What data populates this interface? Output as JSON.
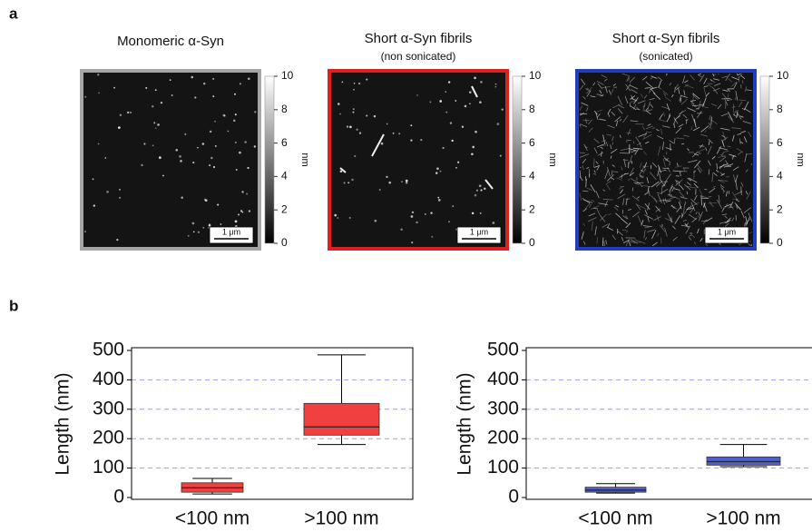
{
  "panel_labels": [
    "a",
    "b"
  ],
  "images": [
    {
      "title": "Monomeric α-Syn",
      "border_color": "#a6a6a6",
      "scale_bar": "1 μm",
      "colorbar": {
        "ylim": [
          0,
          10
        ],
        "yticks": [
          0,
          2,
          4,
          6,
          8,
          10
        ],
        "label": "nm"
      }
    },
    {
      "title": "Short α-Syn fibrils",
      "subtitle": "(non sonicated)",
      "border_color": "#e02020",
      "scale_bar": "1 μm",
      "colorbar": {
        "ylim": [
          0,
          10
        ],
        "yticks": [
          0,
          2,
          4,
          6,
          8,
          10
        ],
        "label": "nm"
      }
    },
    {
      "title": "Short α-Syn fibrils",
      "subtitle": "(sonicated)",
      "border_color": "#1f3fbf",
      "scale_bar": "1 μm",
      "colorbar": {
        "ylim": [
          0,
          10
        ],
        "yticks": [
          0,
          2,
          4,
          6,
          8,
          10
        ],
        "label": "nm"
      }
    }
  ],
  "chart_data": [
    {
      "type": "box",
      "ylabel": "Length (nm)",
      "categories": [
        "<100 nm",
        ">100 nm"
      ],
      "color": "#f04040",
      "boxes": [
        {
          "min": 12,
          "q1": 18,
          "median": 33,
          "q3": 50,
          "max": 65
        },
        {
          "min": 180,
          "q1": 212,
          "median": 240,
          "q3": 320,
          "max": 485
        }
      ],
      "ylim": [
        0,
        500
      ],
      "yticks": [
        0,
        100,
        200,
        300,
        400,
        500
      ],
      "grid": true
    },
    {
      "type": "box",
      "ylabel": "Length (nm)",
      "categories": [
        "<100 nm",
        ">100 nm"
      ],
      "color": "#4d5fd6",
      "boxes": [
        {
          "min": 15,
          "q1": 18,
          "median": 25,
          "q3": 35,
          "max": 47
        },
        {
          "min": 105,
          "q1": 110,
          "median": 122,
          "q3": 138,
          "max": 180
        }
      ],
      "ylim": [
        0,
        500
      ],
      "yticks": [
        0,
        100,
        200,
        300,
        400,
        500
      ],
      "grid": true
    }
  ]
}
